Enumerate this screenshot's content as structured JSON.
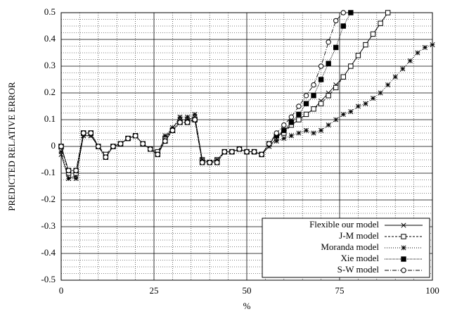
{
  "chart_data": {
    "type": "line",
    "ylabel": "PREDICTED RELATIVE ERROR",
    "xlabel": "%",
    "x": [
      0,
      2,
      4,
      6,
      8,
      10,
      12,
      14,
      16,
      18,
      20,
      22,
      24,
      26,
      28,
      30,
      32,
      34,
      36,
      38,
      40,
      42,
      44,
      46,
      48,
      50,
      52,
      54,
      56,
      58,
      60,
      62,
      64,
      66,
      68,
      70,
      72,
      74,
      76,
      78,
      80,
      82,
      84,
      86,
      88,
      90,
      92,
      94,
      96,
      98,
      100
    ],
    "series": [
      {
        "name": "Flexible our model",
        "color": "#000000",
        "marker": "x",
        "dash": "",
        "values": [
          -0.03,
          -0.12,
          -0.11,
          0.04,
          0.04,
          0.0,
          -0.04,
          0.0,
          0.01,
          0.03,
          0.04,
          0.01,
          -0.01,
          -0.03,
          0.03,
          0.07,
          0.1,
          0.1,
          0.11,
          -0.05,
          -0.06,
          -0.05,
          -0.02,
          -0.02,
          -0.01,
          -0.02,
          -0.02,
          -0.03,
          0.0,
          0.03,
          0.06,
          0.08,
          0.1,
          0.12,
          0.14,
          0.17,
          0.2,
          0.23,
          0.26,
          0.3,
          0.34,
          0.38,
          0.42,
          0.46,
          0.5,
          null,
          null,
          null,
          null,
          null,
          null
        ]
      },
      {
        "name": "J-M model",
        "color": "#000000",
        "marker": "square",
        "dash": "3,2",
        "values": [
          0,
          -0.1,
          -0.1,
          0.05,
          0.05,
          0.0,
          -0.03,
          0.0,
          0.01,
          0.03,
          0.04,
          0.01,
          -0.01,
          -0.02,
          0.03,
          0.06,
          0.09,
          0.09,
          0.1,
          -0.05,
          -0.06,
          -0.05,
          -0.02,
          -0.02,
          -0.01,
          -0.02,
          -0.02,
          -0.03,
          0.01,
          0.04,
          0.05,
          0.08,
          0.1,
          0.12,
          0.14,
          0.16,
          0.19,
          0.22,
          0.26,
          0.3,
          0.34,
          0.38,
          0.42,
          0.46,
          0.5,
          null,
          null,
          null,
          null,
          null,
          null
        ]
      },
      {
        "name": "Moranda model",
        "color": "#000000",
        "marker": "star",
        "dash": "1,2",
        "values": [
          -0.02,
          -0.12,
          -0.12,
          0.04,
          0.04,
          0.0,
          -0.04,
          0.0,
          0.01,
          0.03,
          0.04,
          0.01,
          -0.01,
          -0.03,
          0.04,
          0.07,
          0.11,
          0.11,
          0.12,
          -0.05,
          -0.06,
          -0.05,
          -0.02,
          -0.02,
          -0.01,
          -0.02,
          -0.02,
          -0.03,
          0.0,
          0.02,
          0.03,
          0.04,
          0.05,
          0.06,
          0.05,
          0.06,
          0.08,
          0.1,
          0.12,
          0.13,
          0.15,
          0.16,
          0.18,
          0.2,
          0.23,
          0.26,
          0.29,
          0.32,
          0.35,
          0.37,
          0.38
        ]
      },
      {
        "name": "Xie model",
        "color": "#000000",
        "marker": "filled-square",
        "dash": "1,1",
        "values": [
          0,
          -0.09,
          -0.09,
          0.05,
          0.05,
          0.0,
          -0.04,
          0.0,
          0.01,
          0.03,
          0.04,
          0.01,
          -0.01,
          -0.03,
          0.02,
          0.06,
          0.09,
          0.09,
          0.1,
          -0.06,
          -0.06,
          -0.06,
          -0.02,
          -0.02,
          -0.01,
          -0.02,
          -0.02,
          -0.03,
          0.01,
          0.04,
          0.06,
          0.09,
          0.12,
          0.16,
          0.19,
          0.25,
          0.31,
          0.37,
          0.45,
          0.5,
          null,
          null,
          null,
          null,
          null,
          null,
          null,
          null,
          null,
          null,
          null
        ]
      },
      {
        "name": "S-W model",
        "color": "#000000",
        "marker": "circle",
        "dash": "6,2,1,2",
        "values": [
          0,
          -0.09,
          -0.09,
          0.05,
          0.05,
          0.0,
          -0.04,
          0.0,
          0.01,
          0.03,
          0.04,
          0.01,
          -0.01,
          -0.03,
          0.02,
          0.06,
          0.09,
          0.09,
          0.1,
          -0.06,
          -0.06,
          -0.06,
          -0.02,
          -0.02,
          -0.01,
          -0.02,
          -0.02,
          -0.03,
          0.01,
          0.05,
          0.08,
          0.11,
          0.15,
          0.19,
          0.23,
          0.3,
          0.39,
          0.47,
          0.5,
          null,
          null,
          null,
          null,
          null,
          null,
          null,
          null,
          null,
          null,
          null,
          null
        ]
      }
    ],
    "xlim": [
      0,
      100
    ],
    "xticks": [
      0,
      25,
      50,
      75,
      100
    ],
    "ylim": [
      -0.5,
      0.5
    ],
    "yticks": [
      -0.5,
      -0.4,
      -0.3,
      -0.2,
      -0.1,
      0,
      0.1,
      0.2,
      0.3,
      0.4,
      0.5
    ],
    "minor_xticks": [
      5,
      10,
      15,
      20,
      30,
      35,
      40,
      45,
      55,
      60,
      65,
      70,
      80,
      85,
      90,
      95
    ],
    "minor_yticks": [
      -0.475,
      -0.45,
      -0.425,
      -0.375,
      -0.35,
      -0.325,
      -0.275,
      -0.25,
      -0.225,
      -0.175,
      -0.15,
      -0.125,
      -0.075,
      -0.05,
      -0.025,
      0.025,
      0.05,
      0.075,
      0.125,
      0.15,
      0.175,
      0.225,
      0.25,
      0.275,
      0.325,
      0.35,
      0.375,
      0.425,
      0.45,
      0.475
    ],
    "grid": true,
    "legend": "lower right"
  }
}
